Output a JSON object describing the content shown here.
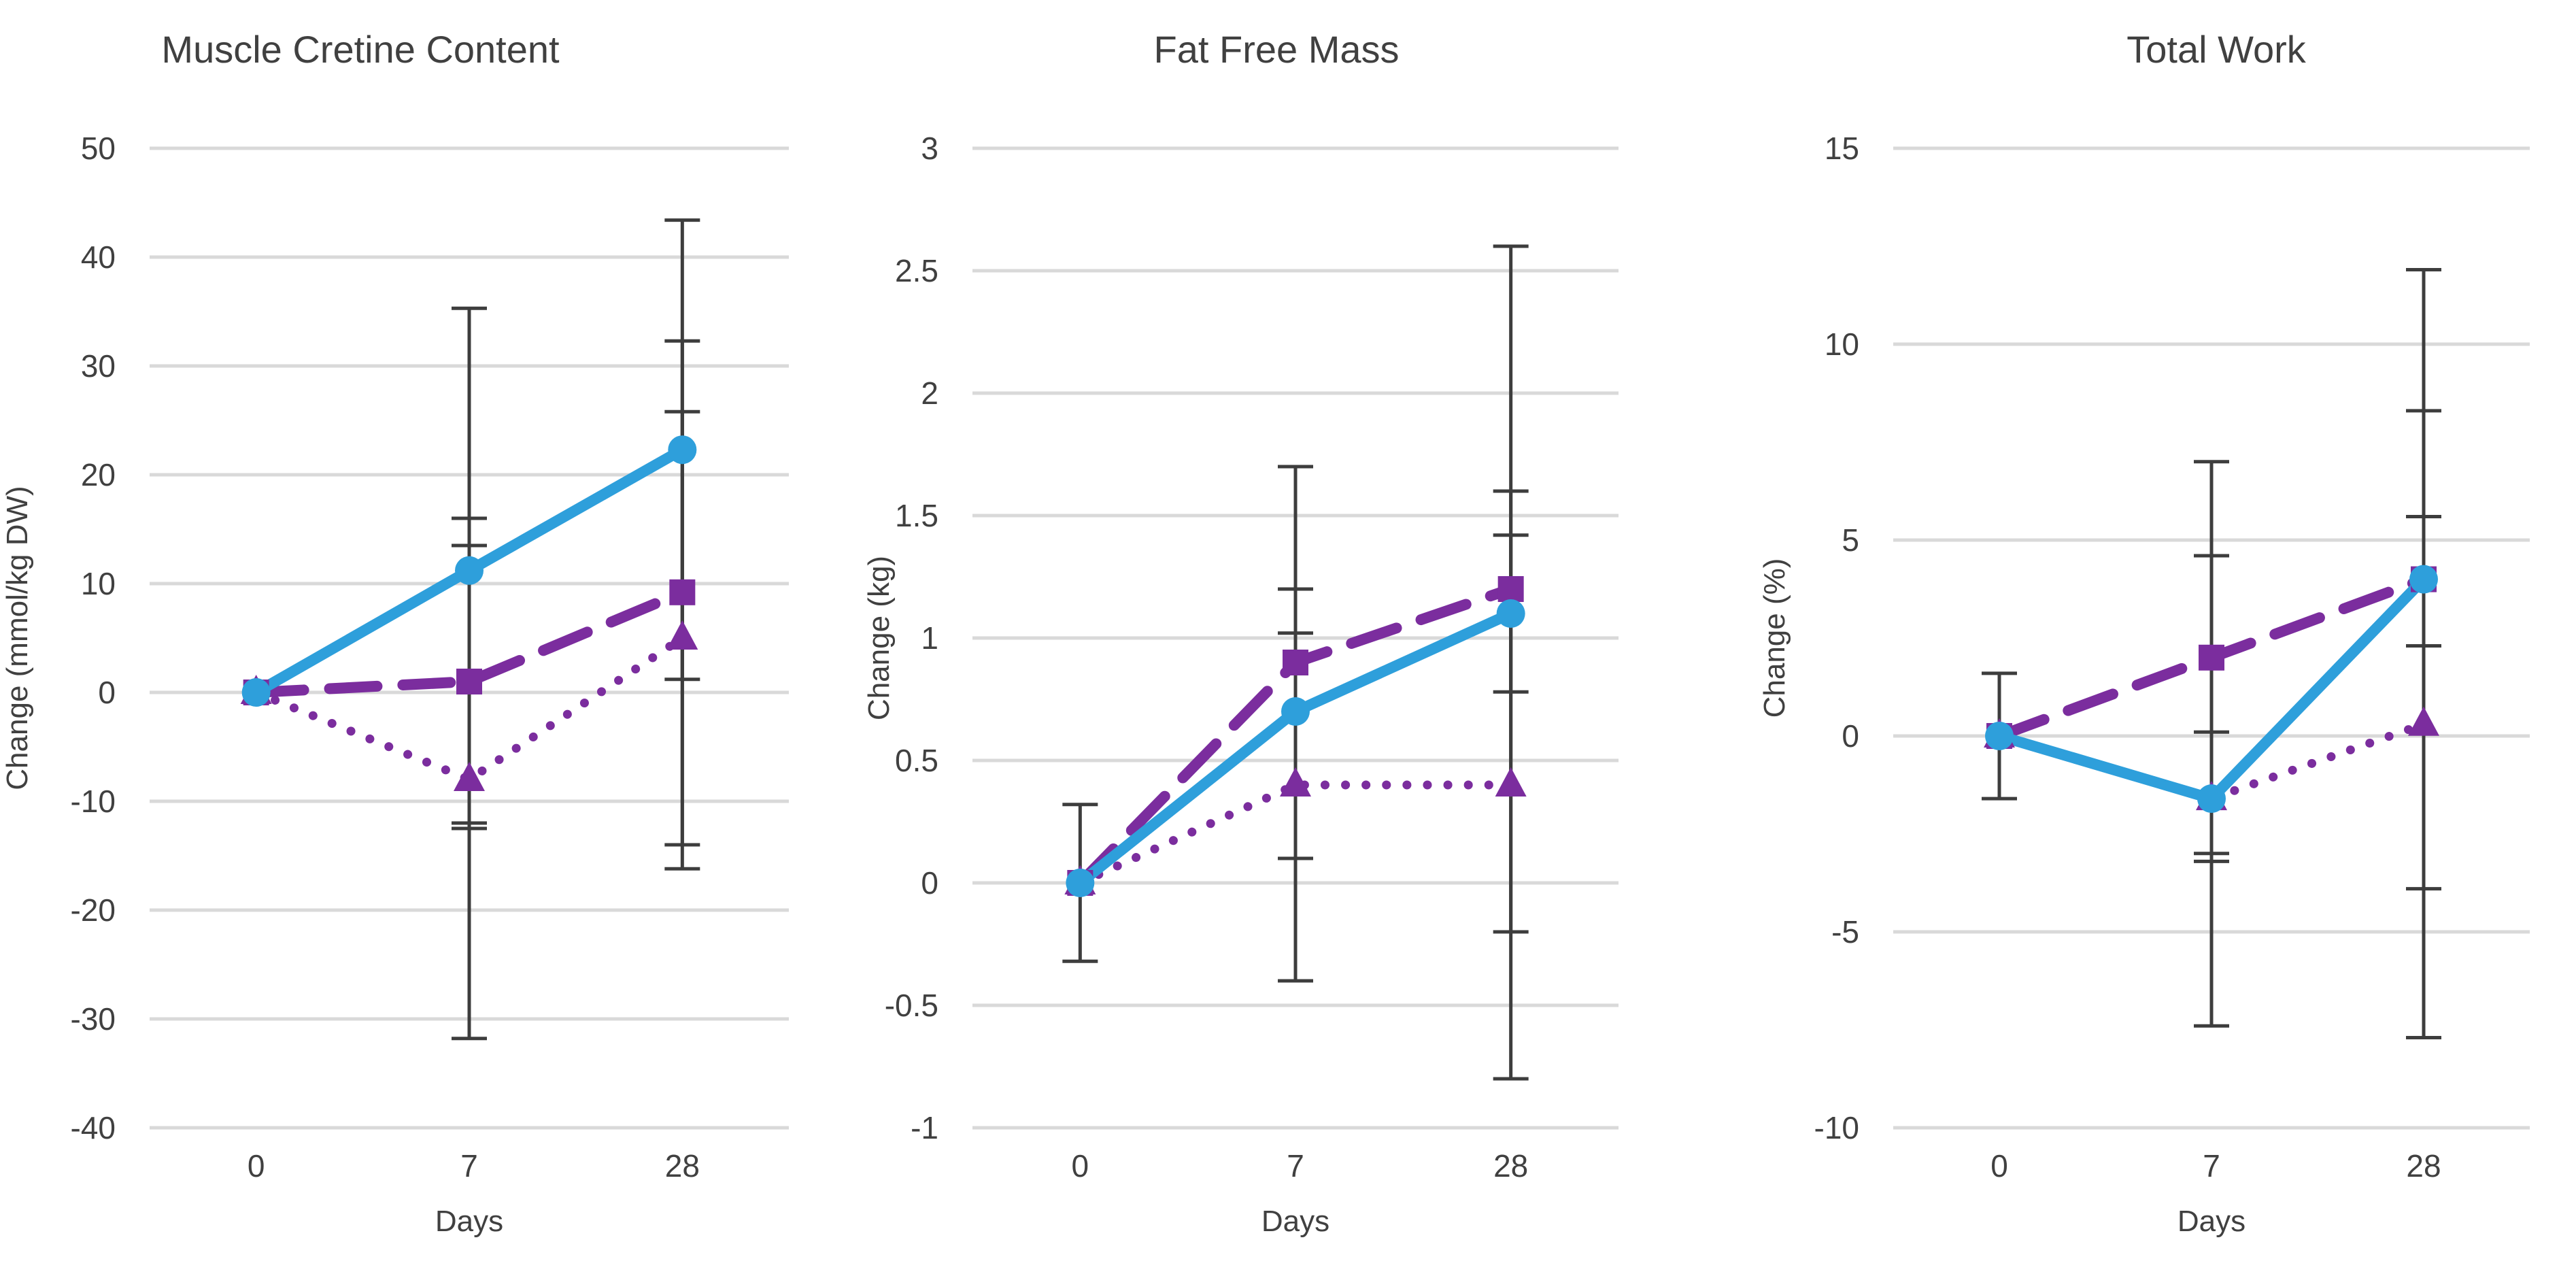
{
  "chart_data": [
    {
      "type": "line",
      "title": "Muscle Cretine Content",
      "xlabel": "Days",
      "ylabel": "Change (mmol/kg DW)",
      "categories": [
        "0",
        "7",
        "28"
      ],
      "yticks": [
        "-40",
        "-30",
        "-20",
        "-10",
        "0",
        "10",
        "20",
        "30",
        "40",
        "50"
      ],
      "ylim": [
        -40,
        50
      ],
      "grid": true,
      "series": [
        {
          "name": "solid blue (circle)",
          "style": "solid",
          "color": "#2e9fdb",
          "marker": "circle",
          "values": [
            0,
            11.2,
            22.3
          ],
          "err_low": [
            0,
            -12.5,
            -16.2
          ],
          "err_high": [
            0,
            35.3,
            43.4
          ]
        },
        {
          "name": "dashed purple (square)",
          "style": "dashed",
          "color": "#7b2d9e",
          "marker": "square",
          "values": [
            0,
            1,
            9.2
          ],
          "err_low": [
            0,
            -31.8,
            -14
          ],
          "err_high": [
            0,
            16,
            32.3
          ]
        },
        {
          "name": "dotted purple (triangle)",
          "style": "dotted",
          "color": "#7b2d9e",
          "marker": "triangle",
          "values": [
            0,
            -8,
            5
          ],
          "err_low": [
            0,
            -12,
            1.2
          ],
          "err_high": [
            0,
            13.5,
            25.8
          ]
        }
      ]
    },
    {
      "type": "line",
      "title": "Fat Free Mass",
      "xlabel": "Days",
      "ylabel": "Change (kg)",
      "categories": [
        "0",
        "7",
        "28"
      ],
      "yticks": [
        "-1",
        "-0.5",
        "0",
        "0.5",
        "1",
        "1.5",
        "2",
        "2.5",
        "3"
      ],
      "ylim": [
        -1,
        3
      ],
      "grid": true,
      "series": [
        {
          "name": "solid blue (circle)",
          "style": "solid",
          "color": "#2e9fdb",
          "marker": "circle",
          "values": [
            0,
            0.7,
            1.1
          ],
          "err_low": [
            -0.32,
            0.1,
            -0.8
          ],
          "err_high": [
            0.32,
            1.2,
            2.6
          ]
        },
        {
          "name": "dashed purple (square)",
          "style": "dashed",
          "color": "#7b2d9e",
          "marker": "square",
          "values": [
            0,
            0.9,
            1.2
          ],
          "err_low": [
            0,
            0.1,
            0.78
          ],
          "err_high": [
            0,
            1.7,
            1.6
          ]
        },
        {
          "name": "dotted purple (triangle)",
          "style": "dotted",
          "color": "#7b2d9e",
          "marker": "triangle",
          "values": [
            0,
            0.4,
            0.4
          ],
          "err_low": [
            0,
            -0.4,
            -0.2
          ],
          "err_high": [
            0,
            1.02,
            1.42
          ]
        }
      ]
    },
    {
      "type": "line",
      "title": "Total Work",
      "xlabel": "Days",
      "ylabel": "Change (%)",
      "categories": [
        "0",
        "7",
        "28"
      ],
      "yticks": [
        "-10",
        "-5",
        "0",
        "5",
        "10",
        "15"
      ],
      "ylim": [
        -10,
        15
      ],
      "grid": true,
      "series": [
        {
          "name": "solid blue (circle)",
          "style": "solid",
          "color": "#2e9fdb",
          "marker": "circle",
          "values": [
            0,
            -1.6,
            4
          ],
          "err_low": [
            -1.6,
            -7.4,
            -7.7
          ],
          "err_high": [
            1.6,
            7,
            11.9
          ]
        },
        {
          "name": "dashed purple (square)",
          "style": "dashed",
          "color": "#7b2d9e",
          "marker": "square",
          "values": [
            0,
            2,
            4
          ],
          "err_low": [
            0,
            -3,
            -3.9
          ],
          "err_high": [
            0,
            4.6,
            8.3
          ]
        },
        {
          "name": "dotted purple (triangle)",
          "style": "dotted",
          "color": "#7b2d9e",
          "marker": "triangle",
          "values": [
            0,
            -1.6,
            0.3
          ],
          "err_low": [
            0,
            -3.2,
            2.3
          ],
          "err_high": [
            0,
            0.1,
            5.6
          ]
        }
      ]
    }
  ]
}
